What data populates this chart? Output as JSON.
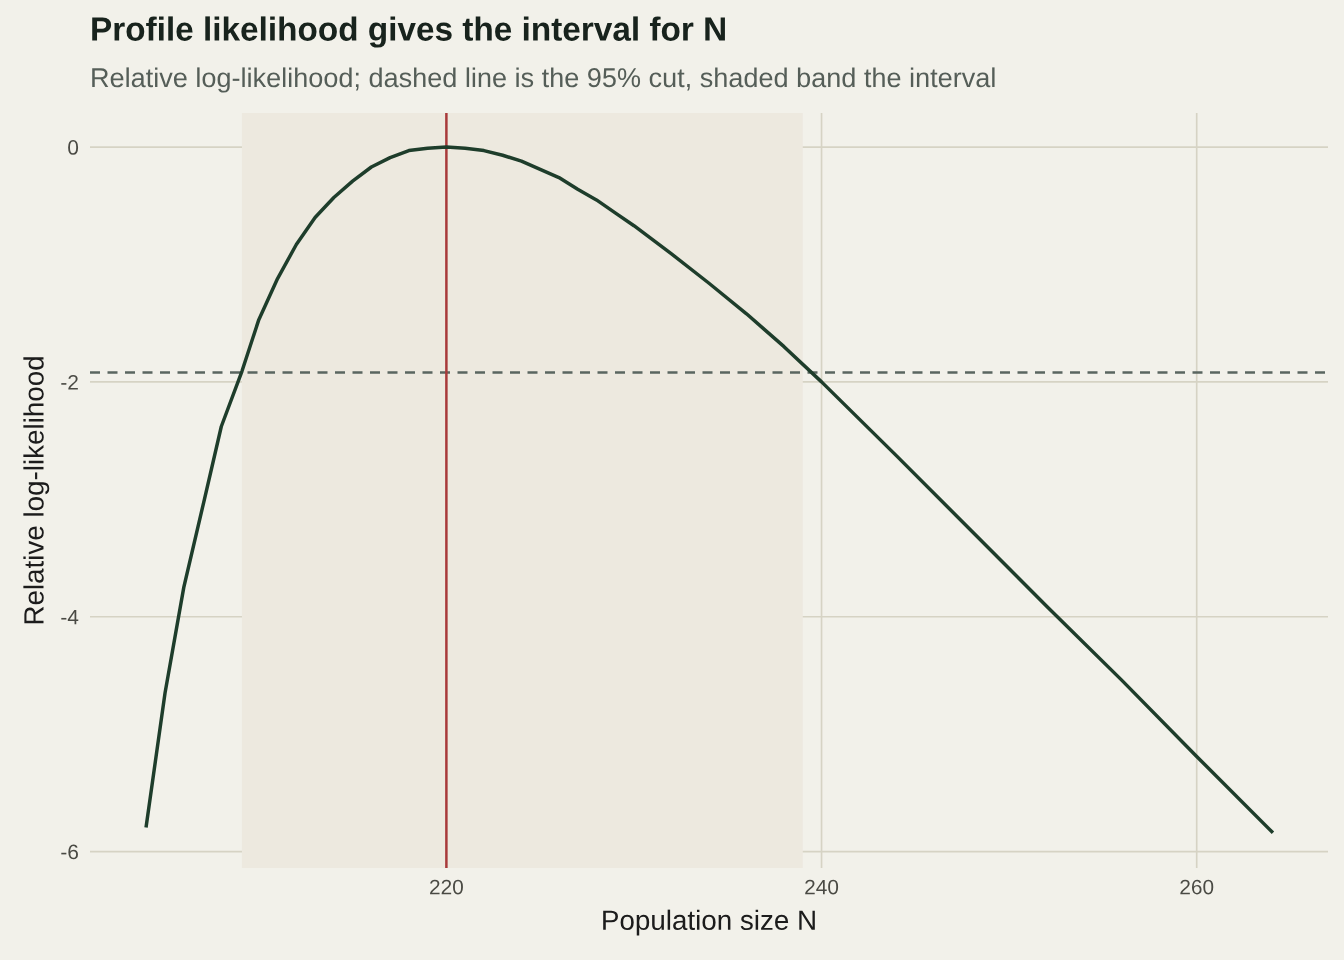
{
  "chart_data": {
    "type": "line",
    "title": "Profile likelihood gives the interval for N",
    "subtitle": "Relative log-likelihood; dashed line is the 95% cut, shaded band the interval",
    "xlabel": "Population size N",
    "ylabel": "Relative log-likelihood",
    "x": [
      204,
      205,
      206,
      207.1,
      208,
      209.1,
      210,
      211,
      212,
      213,
      214,
      215,
      216,
      217,
      218,
      219,
      220,
      221,
      222,
      223,
      224,
      225,
      226,
      227,
      228,
      229,
      230,
      232,
      234,
      236,
      238,
      240,
      244,
      248,
      252,
      256,
      260,
      264
    ],
    "series": [
      {
        "color": "#1e3d2b",
        "values": [
          -5.78,
          -4.65,
          -3.75,
          -3.0,
          -2.38,
          -1.91,
          -1.47,
          -1.12,
          -0.83,
          -0.6,
          -0.43,
          -0.29,
          -0.17,
          -0.09,
          -0.03,
          -0.01,
          0,
          -0.01,
          -0.03,
          -0.07,
          -0.12,
          -0.19,
          -0.26,
          -0.36,
          -0.45,
          -0.56,
          -0.67,
          -0.91,
          -1.16,
          -1.42,
          -1.7,
          -2.0,
          -2.63,
          -3.27,
          -3.91,
          -4.54,
          -5.19,
          -5.83
        ]
      }
    ],
    "xlim": [
      201,
      267
    ],
    "ylim": [
      -6.14,
      0.29
    ],
    "xticks": [
      220,
      240,
      260
    ],
    "yticks": [
      {
        "value": 0,
        "label": "0"
      },
      {
        "value": -2,
        "label": "-2"
      },
      {
        "value": -4,
        "label": "-4"
      },
      {
        "value": -6,
        "label": "-6"
      }
    ],
    "grid": true,
    "line_style": "solid",
    "marker": "none",
    "ref_lines": [
      {
        "axis": "y",
        "value": -1.92,
        "color": "#5a6660",
        "line_style": "dashed"
      },
      {
        "axis": "x",
        "value": 220,
        "color": "#a83a3a",
        "line_style": "solid"
      }
    ],
    "bands": [
      {
        "axis": "x",
        "from": 209.1,
        "to": 239,
        "color": "#ede9df"
      }
    ]
  }
}
